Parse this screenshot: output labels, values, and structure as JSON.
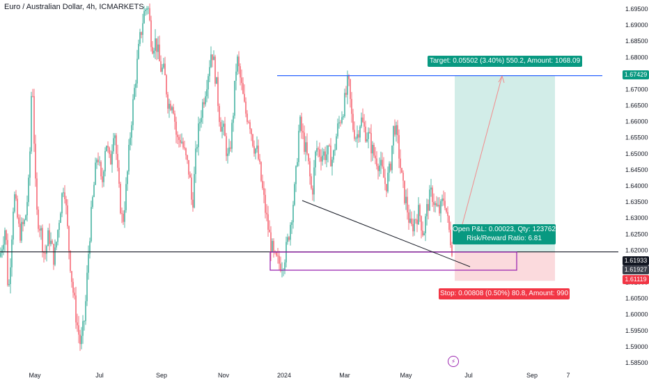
{
  "title": "Euro / Australian Dollar, 4h, ICMARKETS",
  "chart_data": {
    "type": "candlestick",
    "symbol": "Euro / Australian Dollar",
    "interval": "4h",
    "exchange": "ICMARKETS",
    "y_ticks": [
      "1.69500",
      "1.69000",
      "1.68500",
      "1.68000",
      "1.67500",
      "1.67000",
      "1.66500",
      "1.66000",
      "1.65500",
      "1.65000",
      "1.64500",
      "1.64000",
      "1.63500",
      "1.63000",
      "1.62500",
      "1.62000",
      "1.61500",
      "1.61000",
      "1.60500",
      "1.60000",
      "1.59500",
      "1.59000",
      "1.58500"
    ],
    "y_range": [
      1.5835,
      1.6975
    ],
    "x_ticks": [
      "May",
      "Jul",
      "Sep",
      "Nov",
      "2024",
      "Mar",
      "May",
      "Jul",
      "Sep",
      "7"
    ],
    "price_series": [
      [
        0,
        1.618
      ],
      [
        8,
        1.628
      ],
      [
        12,
        1.605
      ],
      [
        20,
        1.638
      ],
      [
        28,
        1.625
      ],
      [
        36,
        1.629
      ],
      [
        42,
        1.642
      ],
      [
        46,
        1.677
      ],
      [
        52,
        1.632
      ],
      [
        58,
        1.627
      ],
      [
        64,
        1.618
      ],
      [
        70,
        1.625
      ],
      [
        78,
        1.617
      ],
      [
        86,
        1.632
      ],
      [
        92,
        1.642
      ],
      [
        98,
        1.623
      ],
      [
        104,
        1.609
      ],
      [
        110,
        1.598
      ],
      [
        116,
        1.59
      ],
      [
        122,
        1.6
      ],
      [
        128,
        1.623
      ],
      [
        134,
        1.638
      ],
      [
        140,
        1.651
      ],
      [
        146,
        1.639
      ],
      [
        152,
        1.655
      ],
      [
        158,
        1.646
      ],
      [
        164,
        1.66
      ],
      [
        170,
        1.64
      ],
      [
        176,
        1.628
      ],
      [
        182,
        1.641
      ],
      [
        188,
        1.659
      ],
      [
        194,
        1.672
      ],
      [
        200,
        1.684
      ],
      [
        206,
        1.693
      ],
      [
        212,
        1.697
      ],
      [
        218,
        1.684
      ],
      [
        224,
        1.685
      ],
      [
        230,
        1.677
      ],
      [
        236,
        1.675
      ],
      [
        242,
        1.665
      ],
      [
        248,
        1.667
      ],
      [
        254,
        1.654
      ],
      [
        260,
        1.655
      ],
      [
        266,
        1.649
      ],
      [
        272,
        1.644
      ],
      [
        276,
        1.633
      ],
      [
        282,
        1.652
      ],
      [
        288,
        1.662
      ],
      [
        294,
        1.669
      ],
      [
        300,
        1.677
      ],
      [
        304,
        1.683
      ],
      [
        310,
        1.673
      ],
      [
        316,
        1.66
      ],
      [
        322,
        1.656
      ],
      [
        328,
        1.647
      ],
      [
        334,
        1.66
      ],
      [
        340,
        1.68
      ],
      [
        346,
        1.672
      ],
      [
        352,
        1.663
      ],
      [
        358,
        1.661
      ],
      [
        364,
        1.653
      ],
      [
        370,
        1.65
      ],
      [
        376,
        1.64
      ],
      [
        382,
        1.631
      ],
      [
        388,
        1.623
      ],
      [
        394,
        1.617
      ],
      [
        400,
        1.616
      ],
      [
        406,
        1.616
      ],
      [
        412,
        1.621
      ],
      [
        418,
        1.63
      ],
      [
        424,
        1.64
      ],
      [
        430,
        1.66
      ],
      [
        436,
        1.654
      ],
      [
        442,
        1.648
      ],
      [
        448,
        1.637
      ],
      [
        454,
        1.652
      ],
      [
        460,
        1.65
      ],
      [
        466,
        1.65
      ],
      [
        472,
        1.65
      ],
      [
        478,
        1.648
      ],
      [
        484,
        1.657
      ],
      [
        490,
        1.662
      ],
      [
        496,
        1.667
      ],
      [
        500,
        1.673
      ],
      [
        506,
        1.659
      ],
      [
        512,
        1.655
      ],
      [
        518,
        1.661
      ],
      [
        524,
        1.657
      ],
      [
        530,
        1.655
      ],
      [
        536,
        1.65
      ],
      [
        542,
        1.648
      ],
      [
        548,
        1.645
      ],
      [
        554,
        1.64
      ],
      [
        560,
        1.645
      ],
      [
        566,
        1.66
      ],
      [
        572,
        1.652
      ],
      [
        578,
        1.64
      ],
      [
        584,
        1.634
      ],
      [
        590,
        1.626
      ],
      [
        596,
        1.63
      ],
      [
        602,
        1.632
      ],
      [
        608,
        1.625
      ],
      [
        614,
        1.634
      ],
      [
        620,
        1.638
      ],
      [
        626,
        1.633
      ],
      [
        632,
        1.632
      ],
      [
        638,
        1.637
      ],
      [
        644,
        1.627
      ],
      [
        650,
        1.62
      ]
    ],
    "current_price": "1.61933",
    "last_price": "1.61927",
    "target_price": "1.67429",
    "stop_price": "1.61119",
    "horizontal_level": 1.6195,
    "target_label": "Target: 0.05502 (3.40%) 550.2, Amount: 1068.09",
    "pnl_label": "Open P&L: 0.00023, Qty: 123762",
    "rr_label": "Risk/Reward Ratio: 6.81",
    "stop_label": "Stop: 0.00808 (0.50%) 80.8, Amount: 990",
    "colors": {
      "up": "#089981",
      "down": "#f23645",
      "target_line": "#2962ff",
      "profit_zone": "#d2ede8",
      "loss_zone": "#fbdadd",
      "box": "#9c27b0",
      "level": "#131722",
      "trend": "#131722"
    }
  }
}
